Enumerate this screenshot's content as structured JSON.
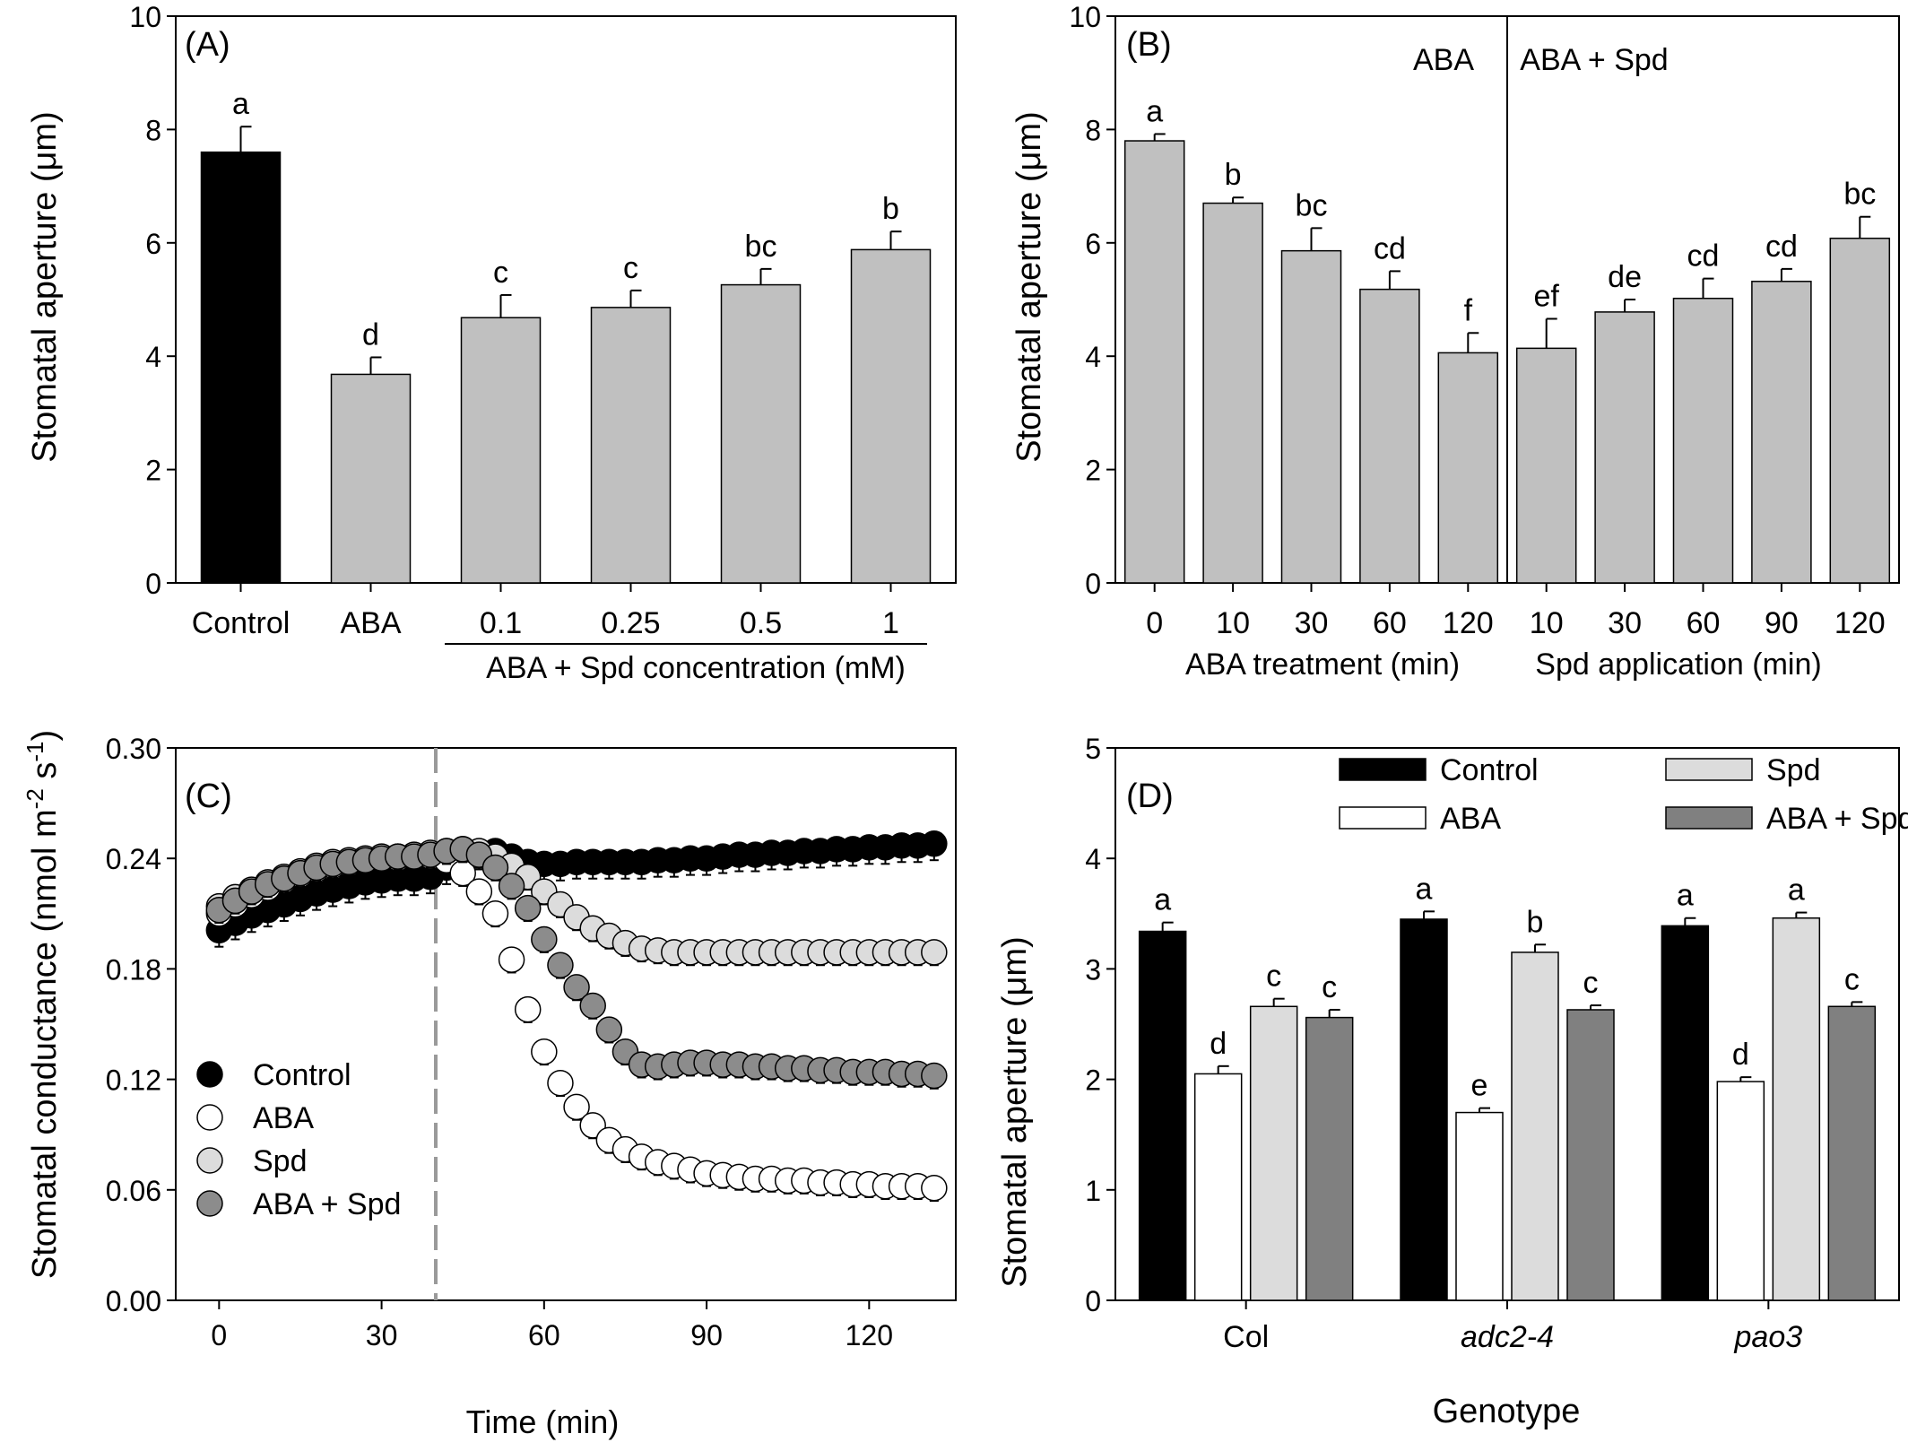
{
  "chart_data": [
    {
      "panel": "(A)",
      "type": "bar",
      "ylabel": "Stomatal aperture (μm)",
      "ylim": [
        0,
        10
      ],
      "yticks": [
        "0",
        "2",
        "4",
        "6",
        "8",
        "10"
      ],
      "categories": [
        "Control",
        "ABA",
        "0.1",
        "0.25",
        "0.5",
        "1"
      ],
      "values": [
        7.6,
        3.68,
        4.68,
        4.86,
        5.26,
        5.88
      ],
      "errors": [
        0.45,
        0.3,
        0.4,
        0.3,
        0.28,
        0.32
      ],
      "letters": [
        "a",
        "d",
        "c",
        "c",
        "bc",
        "b"
      ],
      "colors": [
        "#000000",
        "#c0c0c0",
        "#c0c0c0",
        "#c0c0c0",
        "#c0c0c0",
        "#c0c0c0"
      ],
      "group_label": "ABA + Spd concentration (mM)"
    },
    {
      "panel": "(B)",
      "type": "bar",
      "ylabel": "Stomatal aperture (μm)",
      "ylim": [
        0,
        10
      ],
      "yticks": [
        "0",
        "2",
        "4",
        "6",
        "8",
        "10"
      ],
      "categories": [
        "0",
        "10",
        "30",
        "60",
        "120",
        "10",
        "30",
        "60",
        "90",
        "120"
      ],
      "values": [
        7.8,
        6.7,
        5.86,
        5.18,
        4.06,
        4.14,
        4.78,
        5.02,
        5.32,
        6.08
      ],
      "errors": [
        0.12,
        0.1,
        0.4,
        0.32,
        0.35,
        0.52,
        0.22,
        0.35,
        0.22,
        0.38
      ],
      "letters": [
        "a",
        "b",
        "bc",
        "cd",
        "f",
        "ef",
        "de",
        "cd",
        "cd",
        "bc"
      ],
      "color": "#c0c0c0",
      "section_labels": [
        "ABA",
        "ABA + Spd"
      ],
      "xlabels": [
        "ABA treatment (min)",
        "Spd application (min)"
      ]
    },
    {
      "panel": "(C)",
      "type": "scatter",
      "xlabel": "Time (min)",
      "ylabel": "Stomatal conductance (nmol m",
      "ylabel_sup1": "-2",
      "ylabel_mid": " s",
      "ylabel_sup2": "-1",
      "ylabel_end": ")",
      "xlim": [
        -8,
        136
      ],
      "ylim": [
        0,
        0.3
      ],
      "xticks": [
        0,
        30,
        60,
        90,
        120
      ],
      "yticks": [
        "0.00",
        "0.06",
        "0.12",
        "0.18",
        "0.24",
        "0.30"
      ],
      "treatment_line_x": 40,
      "series": [
        {
          "name": "Control",
          "color": "#000000",
          "x": [
            0,
            3,
            6,
            9,
            12,
            15,
            18,
            21,
            24,
            27,
            30,
            33,
            36,
            39,
            42,
            45,
            48,
            51,
            54,
            57,
            60,
            63,
            66,
            69,
            72,
            75,
            78,
            81,
            84,
            87,
            90,
            93,
            96,
            99,
            102,
            105,
            108,
            111,
            114,
            117,
            120,
            123,
            126,
            129,
            132
          ],
          "y": [
            0.201,
            0.205,
            0.209,
            0.212,
            0.215,
            0.218,
            0.221,
            0.223,
            0.225,
            0.227,
            0.228,
            0.229,
            0.229,
            0.23,
            0.235,
            0.24,
            0.243,
            0.244,
            0.241,
            0.238,
            0.237,
            0.237,
            0.238,
            0.238,
            0.238,
            0.238,
            0.238,
            0.239,
            0.239,
            0.24,
            0.24,
            0.241,
            0.242,
            0.242,
            0.243,
            0.243,
            0.244,
            0.244,
            0.245,
            0.245,
            0.246,
            0.246,
            0.247,
            0.247,
            0.248
          ]
        },
        {
          "name": "ABA",
          "color": "#ffffff",
          "x": [
            0,
            3,
            6,
            9,
            12,
            15,
            18,
            21,
            24,
            27,
            30,
            33,
            36,
            39,
            42,
            45,
            48,
            51,
            54,
            57,
            60,
            63,
            66,
            69,
            72,
            75,
            78,
            81,
            84,
            87,
            90,
            93,
            96,
            99,
            102,
            105,
            108,
            111,
            114,
            117,
            120,
            123,
            126,
            129,
            132
          ],
          "y": [
            0.21,
            0.215,
            0.22,
            0.224,
            0.228,
            0.231,
            0.234,
            0.236,
            0.238,
            0.239,
            0.24,
            0.24,
            0.241,
            0.241,
            0.239,
            0.232,
            0.222,
            0.21,
            0.185,
            0.158,
            0.135,
            0.118,
            0.105,
            0.095,
            0.087,
            0.082,
            0.078,
            0.075,
            0.073,
            0.071,
            0.069,
            0.068,
            0.067,
            0.066,
            0.066,
            0.065,
            0.065,
            0.064,
            0.064,
            0.063,
            0.063,
            0.062,
            0.062,
            0.062,
            0.061
          ]
        },
        {
          "name": "Spd",
          "color": "#dcdcdc",
          "x": [
            0,
            3,
            6,
            9,
            12,
            15,
            18,
            21,
            24,
            27,
            30,
            33,
            36,
            39,
            42,
            45,
            48,
            51,
            54,
            57,
            60,
            63,
            66,
            69,
            72,
            75,
            78,
            81,
            84,
            87,
            90,
            93,
            96,
            99,
            102,
            105,
            108,
            111,
            114,
            117,
            120,
            123,
            126,
            129,
            132
          ],
          "y": [
            0.214,
            0.219,
            0.223,
            0.227,
            0.23,
            0.233,
            0.236,
            0.238,
            0.239,
            0.24,
            0.241,
            0.241,
            0.242,
            0.243,
            0.244,
            0.245,
            0.244,
            0.241,
            0.236,
            0.23,
            0.222,
            0.215,
            0.208,
            0.202,
            0.198,
            0.194,
            0.191,
            0.19,
            0.189,
            0.189,
            0.189,
            0.189,
            0.189,
            0.189,
            0.189,
            0.189,
            0.189,
            0.189,
            0.189,
            0.189,
            0.189,
            0.189,
            0.189,
            0.189,
            0.189
          ]
        },
        {
          "name": "ABA + Spd",
          "color": "#8c8c8c",
          "x": [
            0,
            3,
            6,
            9,
            12,
            15,
            18,
            21,
            24,
            27,
            30,
            33,
            36,
            39,
            42,
            45,
            48,
            51,
            54,
            57,
            60,
            63,
            66,
            69,
            72,
            75,
            78,
            81,
            84,
            87,
            90,
            93,
            96,
            99,
            102,
            105,
            108,
            111,
            114,
            117,
            120,
            123,
            126,
            129,
            132
          ],
          "y": [
            0.212,
            0.217,
            0.222,
            0.226,
            0.229,
            0.232,
            0.235,
            0.237,
            0.238,
            0.239,
            0.24,
            0.241,
            0.241,
            0.242,
            0.244,
            0.245,
            0.242,
            0.235,
            0.225,
            0.213,
            0.196,
            0.182,
            0.17,
            0.16,
            0.147,
            0.135,
            0.128,
            0.127,
            0.128,
            0.129,
            0.129,
            0.128,
            0.128,
            0.127,
            0.127,
            0.126,
            0.126,
            0.125,
            0.125,
            0.124,
            0.124,
            0.124,
            0.123,
            0.123,
            0.122
          ]
        }
      ],
      "legend": [
        "Control",
        "ABA",
        "Spd",
        "ABA + Spd"
      ],
      "legend_position": "bottom-left"
    },
    {
      "panel": "(D)",
      "type": "bar",
      "xlabel": "Genotype",
      "ylabel": "Stomatal aperture (μm)",
      "ylim": [
        0,
        5
      ],
      "yticks": [
        "0",
        "1",
        "2",
        "3",
        "4",
        "5"
      ],
      "categories": [
        "Col",
        "adc2-4",
        "pao3"
      ],
      "category_italic": [
        false,
        true,
        true
      ],
      "series": [
        {
          "name": "Control",
          "color": "#000000",
          "values": [
            3.34,
            3.45,
            3.39
          ],
          "errors": [
            0.08,
            0.07,
            0.07
          ],
          "letters": [
            "a",
            "a",
            "a"
          ]
        },
        {
          "name": "ABA",
          "color": "#ffffff",
          "values": [
            2.05,
            1.7,
            1.98
          ],
          "errors": [
            0.07,
            0.04,
            0.04
          ],
          "letters": [
            "d",
            "e",
            "d"
          ]
        },
        {
          "name": "Spd",
          "color": "#dcdcdc",
          "values": [
            2.66,
            3.15,
            3.46
          ],
          "errors": [
            0.07,
            0.07,
            0.05
          ],
          "letters": [
            "c",
            "b",
            "a"
          ]
        },
        {
          "name": "ABA + Spd",
          "color": "#808080",
          "values": [
            2.56,
            2.63,
            2.66
          ],
          "errors": [
            0.07,
            0.04,
            0.04
          ],
          "letters": [
            "c",
            "c",
            "c"
          ]
        }
      ],
      "legend_position": "top"
    }
  ]
}
